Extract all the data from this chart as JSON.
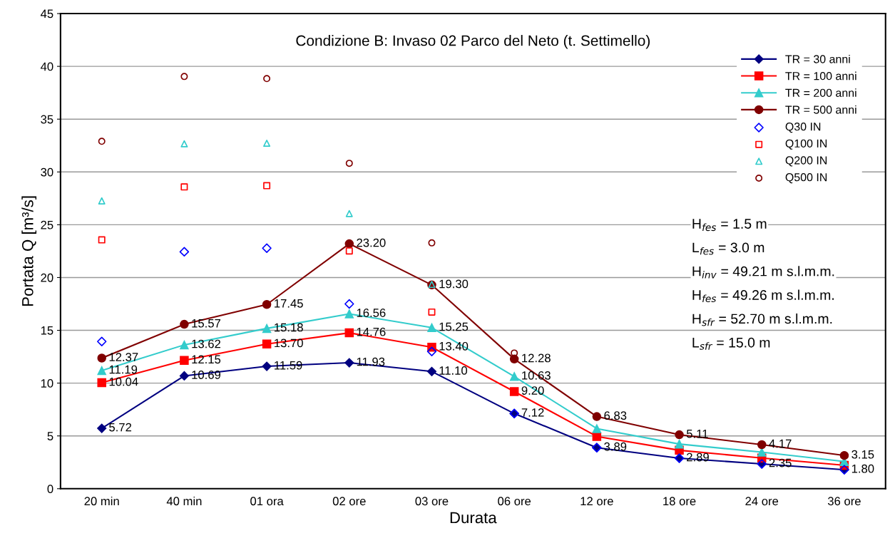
{
  "chart_data": {
    "type": "line",
    "title": "Condizione B: Invaso 02 Parco del Neto (t. Settimello)",
    "xlabel": "Durata",
    "ylabel": "Portata Q [m³/s]",
    "categories": [
      "20 min",
      "40 min",
      "01 ora",
      "02 ore",
      "03 ore",
      "06 ore",
      "12 ore",
      "18 ore",
      "24 ore",
      "36 ore"
    ],
    "ylim": [
      0,
      45
    ],
    "yticks": [
      0,
      5,
      10,
      15,
      20,
      25,
      30,
      35,
      40,
      45
    ],
    "grid": "y",
    "legend": "top right",
    "series": [
      {
        "name": "TR = 30 anni",
        "type": "line",
        "marker": "diamond",
        "color": "#000080",
        "values": [
          5.72,
          10.69,
          11.59,
          11.93,
          11.1,
          7.12,
          3.89,
          2.89,
          2.35,
          1.8
        ],
        "value_labels": [
          "5.72",
          "10.69",
          "11.59",
          "11.93",
          "11.10",
          "7.12",
          "3.89",
          "2.89",
          "2.35",
          "1.80"
        ]
      },
      {
        "name": "TR = 100 anni",
        "type": "line",
        "marker": "square",
        "color": "#ff0000",
        "values": [
          10.04,
          12.15,
          13.7,
          14.76,
          13.4,
          9.2,
          4.95,
          3.64,
          2.9,
          2.22
        ],
        "value_labels": [
          "10.04",
          "12.15",
          "13.70",
          "14.76",
          "13.40",
          "9.20",
          null,
          null,
          null,
          null
        ]
      },
      {
        "name": "TR = 200 anni",
        "type": "line",
        "marker": "triangle",
        "color": "#33cccc",
        "values": [
          11.19,
          13.62,
          15.18,
          16.56,
          15.25,
          10.63,
          5.69,
          4.23,
          3.46,
          2.57
        ],
        "value_labels": [
          "11.19",
          "13.62",
          "15.18",
          "16.56",
          "15.25",
          "10.63",
          null,
          null,
          null,
          null
        ]
      },
      {
        "name": "TR = 500 anni",
        "type": "line",
        "marker": "circle",
        "color": "#800000",
        "values": [
          12.37,
          15.57,
          17.45,
          23.2,
          19.3,
          12.28,
          6.83,
          5.11,
          4.17,
          3.15
        ],
        "value_labels": [
          "12.37",
          "15.57",
          "17.45",
          "23.20",
          "19.30",
          "12.28",
          "6.83",
          "5.11",
          "4.17",
          "3.15"
        ]
      },
      {
        "name": "Q30 IN",
        "type": "scatter",
        "marker": "diamond",
        "color": "#0000ff",
        "values": [
          13.94,
          22.44,
          22.78,
          17.5,
          13.0,
          7.12,
          3.89,
          2.89,
          2.35,
          1.8
        ]
      },
      {
        "name": "Q100 IN",
        "type": "scatter",
        "marker": "square",
        "color": "#ff0000",
        "values": [
          23.57,
          28.58,
          28.7,
          22.52,
          16.73,
          null,
          null,
          null,
          null,
          null
        ]
      },
      {
        "name": "Q200 IN",
        "type": "scatter",
        "marker": "triangle",
        "color": "#33cccc",
        "values": [
          27.26,
          32.67,
          32.72,
          26.06,
          19.35,
          null,
          null,
          null,
          null,
          null
        ]
      },
      {
        "name": "Q500 IN",
        "type": "scatter",
        "marker": "circle",
        "color": "#800000",
        "values": [
          32.9,
          39.04,
          38.84,
          30.82,
          23.28,
          12.85,
          null,
          null,
          null,
          null
        ]
      }
    ],
    "annotations": [
      "H$_{fes}$ = 1.5 m",
      "L$_{fes}$ = 3.0 m",
      "H$_{inv}$ = 49.21 m s.l.m.m.",
      "H$_{fes}$ = 49.26 m s.l.m.m.",
      "H$_{sfr}$ = 52.70 m s.l.m.m.",
      "L$_{sfr}$ = 15.0 m"
    ]
  }
}
